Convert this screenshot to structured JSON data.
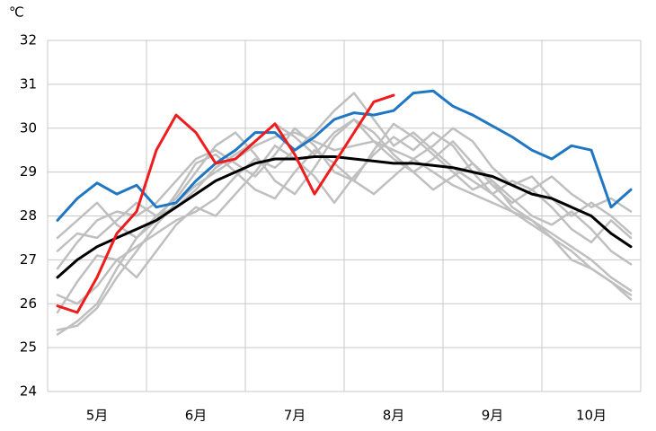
{
  "chart_data": {
    "type": "line",
    "y_label": "℃",
    "categories": [
      null,
      null,
      "5月",
      null,
      null,
      null,
      null,
      "6月",
      null,
      null,
      null,
      null,
      "7月",
      null,
      null,
      null,
      null,
      "8月",
      null,
      null,
      null,
      null,
      "9月",
      null,
      null,
      null,
      null,
      "10月",
      null,
      null
    ],
    "ylim": [
      24,
      32
    ],
    "yticks": [
      24,
      25,
      26,
      27,
      28,
      29,
      30,
      31,
      32
    ],
    "grid": true,
    "series": [
      {
        "color": "#bfbfbf",
        "values": [
          25.4,
          25.5,
          25.9,
          26.6,
          27.2,
          27.8,
          28.3,
          28.7,
          29.0,
          29.3,
          29.6,
          29.8,
          29.9,
          29.7,
          29.5,
          29.6,
          29.7,
          29.5,
          29.3,
          29.0,
          28.7,
          28.5,
          28.3,
          28.1,
          27.9,
          27.6,
          27.3,
          27.0,
          26.6,
          26.3
        ]
      },
      {
        "color": "#bfbfbf",
        "values": [
          26.8,
          27.4,
          27.9,
          28.1,
          28.0,
          28.3,
          28.8,
          29.3,
          29.5,
          29.2,
          28.9,
          29.4,
          30.0,
          29.6,
          29.0,
          28.8,
          29.5,
          30.1,
          29.8,
          29.4,
          29.0,
          28.6,
          28.8,
          28.4,
          28.0,
          27.8,
          28.1,
          27.7,
          27.2,
          26.9
        ]
      },
      {
        "color": "#bfbfbf",
        "values": [
          27.2,
          27.6,
          27.5,
          27.9,
          28.3,
          28.0,
          28.4,
          29.0,
          29.6,
          29.9,
          29.4,
          28.8,
          28.5,
          29.1,
          29.8,
          30.2,
          29.9,
          29.4,
          29.0,
          29.3,
          29.7,
          29.2,
          28.7,
          28.3,
          28.6,
          28.9,
          28.5,
          28.2,
          28.4,
          28.1
        ]
      },
      {
        "color": "#bfbfbf",
        "values": [
          26.2,
          26.0,
          26.4,
          27.0,
          27.3,
          27.6,
          27.9,
          28.1,
          28.4,
          28.9,
          29.3,
          29.1,
          29.5,
          29.9,
          30.4,
          30.8,
          30.2,
          29.6,
          29.9,
          29.5,
          29.1,
          28.8,
          28.5,
          28.1,
          27.8,
          27.5,
          27.2,
          26.8,
          26.5,
          26.2
        ]
      },
      {
        "color": "#bfbfbf",
        "values": [
          25.8,
          26.5,
          27.1,
          27.0,
          26.6,
          27.2,
          27.8,
          28.2,
          28.0,
          28.5,
          29.0,
          29.6,
          29.3,
          28.9,
          28.3,
          28.9,
          29.4,
          29.8,
          29.5,
          29.9,
          29.6,
          29.0,
          28.5,
          28.8,
          28.6,
          28.2,
          27.7,
          27.4,
          27.9,
          27.5
        ]
      },
      {
        "color": "#bfbfbf",
        "values": [
          27.5,
          27.9,
          28.3,
          27.8,
          27.5,
          27.9,
          28.5,
          29.2,
          29.4,
          29.0,
          28.6,
          28.4,
          29.0,
          29.5,
          29.2,
          28.8,
          28.5,
          28.9,
          29.3,
          29.6,
          30.0,
          29.7,
          29.1,
          28.7,
          28.9,
          28.4,
          28.0,
          28.3,
          28.0,
          27.6
        ]
      },
      {
        "color": "#bfbfbf",
        "values": [
          25.3,
          25.6,
          26.0,
          26.8,
          27.5,
          28.0,
          28.2,
          28.6,
          29.1,
          29.4,
          29.7,
          30.1,
          29.8,
          29.4,
          29.9,
          30.2,
          29.7,
          29.3,
          29.0,
          28.6,
          28.9,
          29.2,
          28.8,
          28.2,
          27.9,
          27.5,
          27.0,
          26.8,
          26.5,
          26.1
        ]
      },
      {
        "color": "#000000",
        "values": [
          26.6,
          27.0,
          27.3,
          27.5,
          27.7,
          27.9,
          28.2,
          28.5,
          28.8,
          29.0,
          29.2,
          29.3,
          29.3,
          29.35,
          29.35,
          29.3,
          29.25,
          29.2,
          29.2,
          29.15,
          29.1,
          29.0,
          28.9,
          28.7,
          28.5,
          28.4,
          28.2,
          28.0,
          27.6,
          27.3
        ]
      },
      {
        "color": "#1f77c4",
        "values": [
          27.9,
          28.4,
          28.75,
          28.5,
          28.7,
          28.2,
          28.3,
          28.8,
          29.2,
          29.5,
          29.9,
          29.9,
          29.5,
          29.8,
          30.2,
          30.35,
          30.3,
          30.4,
          30.8,
          30.85,
          30.5,
          30.3,
          30.05,
          29.8,
          29.5,
          29.3,
          29.6,
          29.5,
          28.2,
          28.6
        ]
      },
      {
        "color": "#ee1c1c",
        "values": [
          25.95,
          25.8,
          26.6,
          27.6,
          28.1,
          29.5,
          30.3,
          29.9,
          29.2,
          29.3,
          29.7,
          30.1,
          29.4,
          28.5,
          29.2,
          29.9,
          30.6,
          30.75,
          null,
          null,
          null,
          null,
          null,
          null,
          null,
          null,
          null,
          null,
          null,
          null
        ]
      }
    ]
  }
}
